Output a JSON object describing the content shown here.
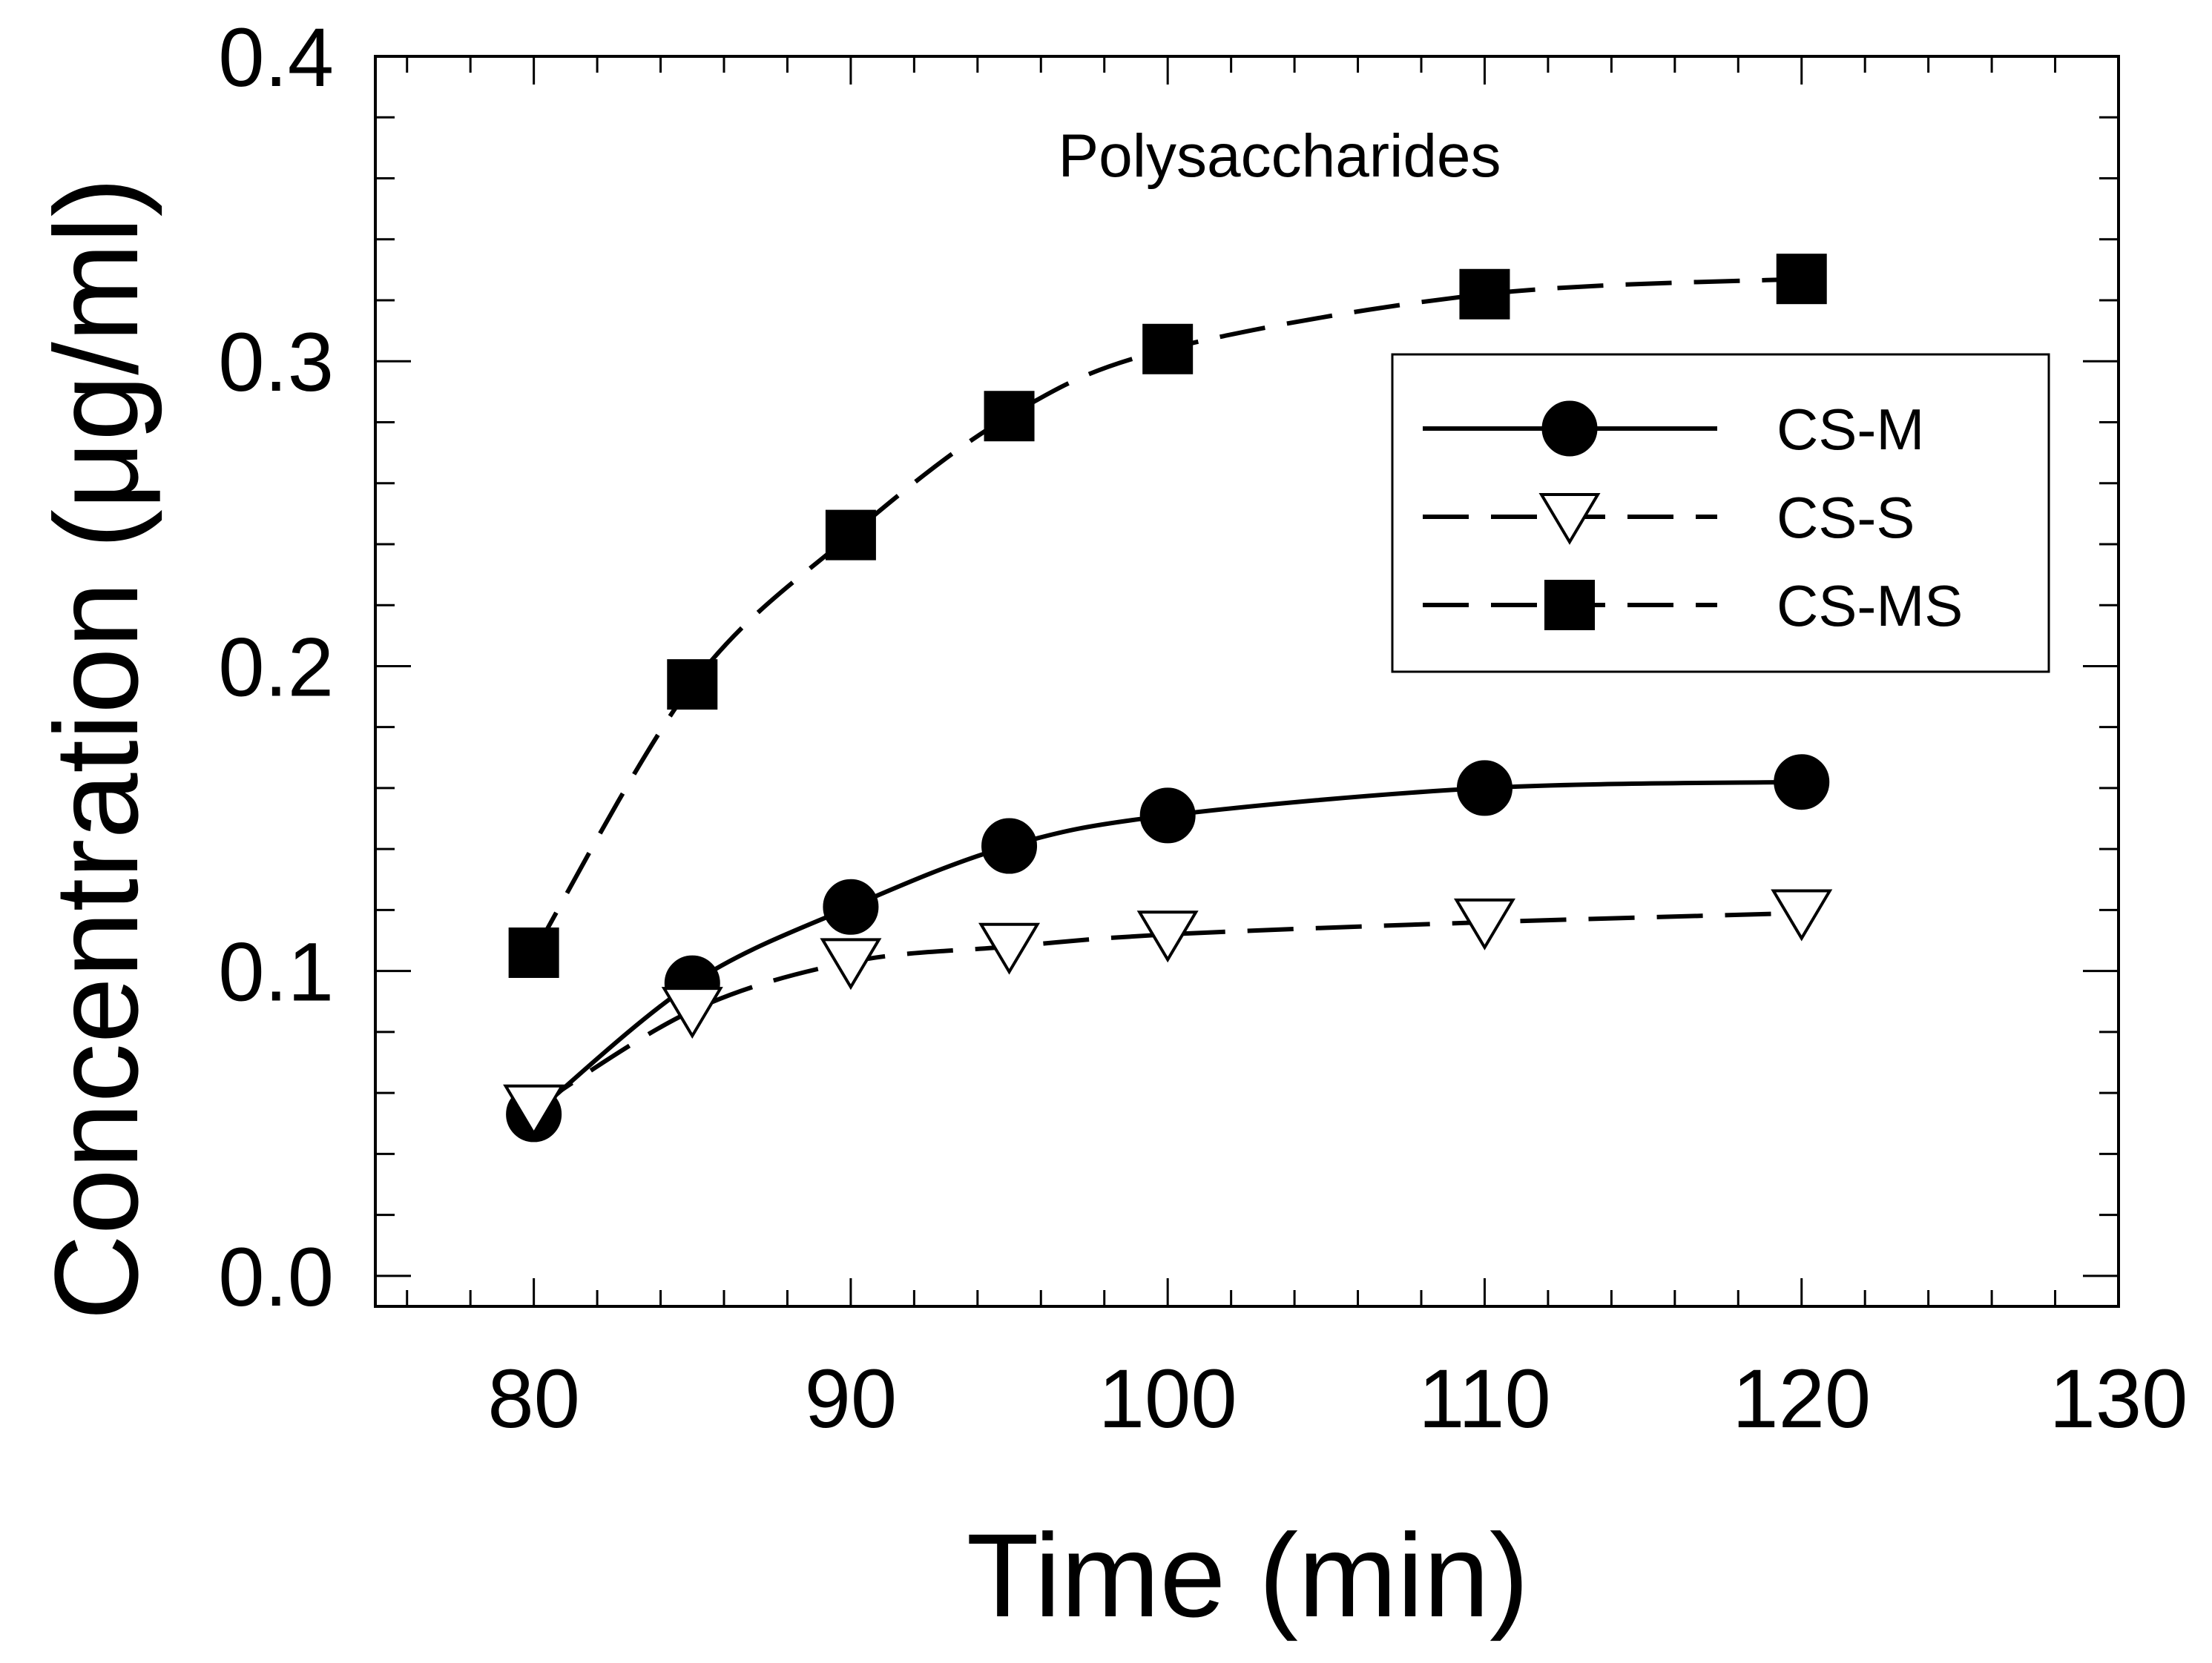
{
  "chart_data": {
    "type": "line",
    "title": "Polysaccharides",
    "xlabel": "Time (min)",
    "ylabel": "Concentration (μg/ml)",
    "xlim": [
      75,
      130
    ],
    "ylim": [
      -0.01,
      0.4
    ],
    "xticks": [
      80,
      90,
      100,
      110,
      120,
      130
    ],
    "xtick_labels": [
      "80",
      "90",
      "100",
      "110",
      "120",
      "130"
    ],
    "yticks": [
      0.0,
      0.1,
      0.2,
      0.3,
      0.4
    ],
    "ytick_labels": [
      "0.0",
      "0.1",
      "0.2",
      "0.3",
      "0.4"
    ],
    "grid": false,
    "legend_position": "upper-right",
    "x": [
      80,
      85,
      90,
      95,
      100,
      110,
      120
    ],
    "series": [
      {
        "name": "CS-M",
        "marker": "circle",
        "line": "solid",
        "values": [
          0.053,
          0.096,
          0.121,
          0.141,
          0.151,
          0.16,
          0.162
        ]
      },
      {
        "name": "CS-S",
        "marker": "triangle-down",
        "line": "dashed",
        "values": [
          0.055,
          0.087,
          0.103,
          0.108,
          0.112,
          0.116,
          0.119
        ]
      },
      {
        "name": "CS-MS",
        "marker": "square",
        "line": "dashed",
        "values": [
          0.106,
          0.194,
          0.243,
          0.282,
          0.304,
          0.322,
          0.327
        ]
      }
    ],
    "colors": {
      "line": "#000000",
      "marker_fill": "#000000",
      "open_marker_fill": "#ffffff",
      "background": "#ffffff"
    }
  }
}
